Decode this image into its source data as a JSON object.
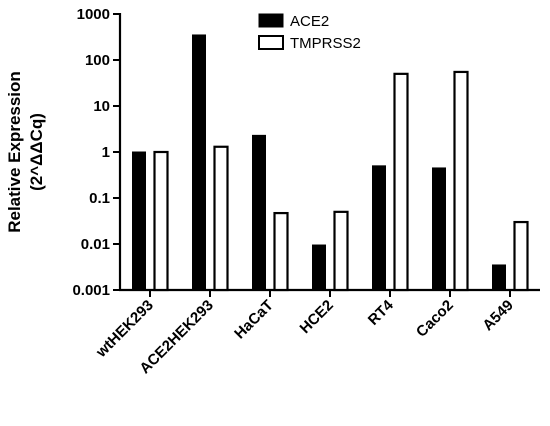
{
  "chart_data": {
    "type": "bar",
    "title": "",
    "xlabel": "",
    "ylabel": [
      "Relative Expression",
      "(2^ΔΔCq)"
    ],
    "y_scale": "log10",
    "ylim": [
      0.001,
      1000
    ],
    "yticks": [
      0.001,
      0.01,
      0.1,
      1,
      10,
      100,
      1000
    ],
    "ytick_labels": [
      "0.001",
      "0.01",
      "0.1",
      "1",
      "10",
      "100",
      "1000"
    ],
    "categories": [
      "wtHEK293",
      "ACE2HEK293",
      "HaCaT",
      "HCE2",
      "RT4",
      "Caco2",
      "A549"
    ],
    "series": [
      {
        "name": "ACE2",
        "color": "#000000",
        "fill": "solid",
        "values": [
          1,
          350,
          2.3,
          0.0095,
          0.5,
          0.45,
          0.0035
        ]
      },
      {
        "name": "TMPRSS2",
        "color": "#000000",
        "fill": "none",
        "values": [
          1,
          1.3,
          0.047,
          0.05,
          50,
          55,
          0.03
        ]
      }
    ],
    "legend_position": "top-right",
    "grid": false
  }
}
